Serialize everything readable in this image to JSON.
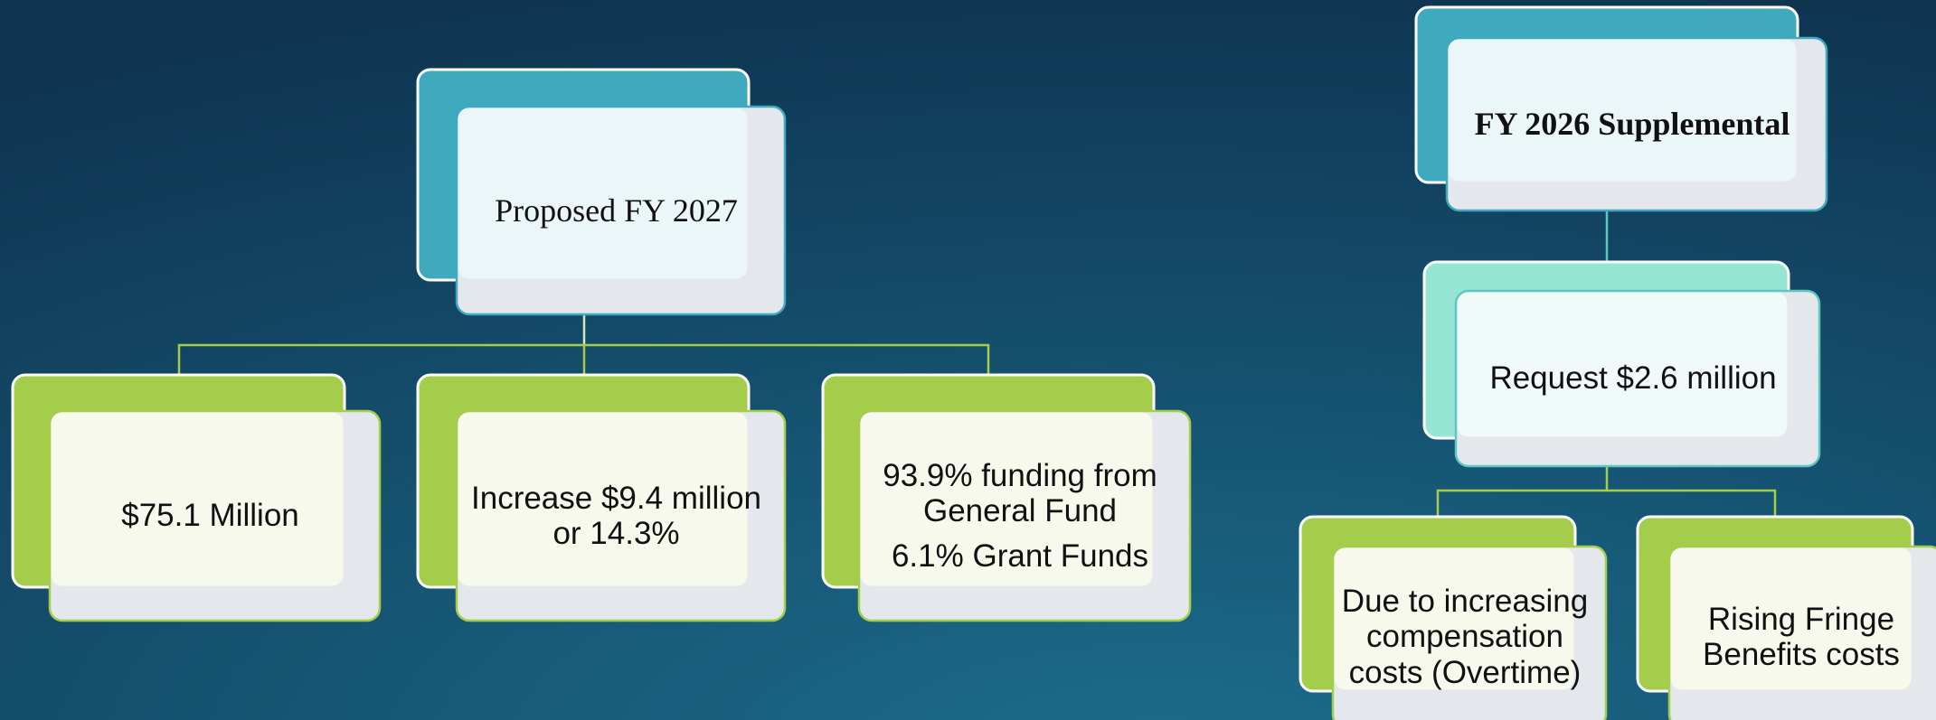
{
  "nodes": [
    {
      "text": [
        "Proposed FY 2027"
      ]
    },
    {
      "text": [
        "$75.1 Million"
      ]
    },
    {
      "text": [
        "Increase $9.4 million or 14.3%"
      ]
    },
    {
      "text": [
        "93.9% funding from General Fund",
        "6.1% Grant Funds"
      ]
    },
    {
      "text": [
        "FY 2026 Supplemental"
      ]
    },
    {
      "text": [
        "Request $2.6 million"
      ]
    },
    {
      "text": [
        "Due to increasing compensation costs (Overtime)"
      ]
    },
    {
      "text": [
        "Rising Fringe Benefits costs"
      ]
    }
  ]
}
